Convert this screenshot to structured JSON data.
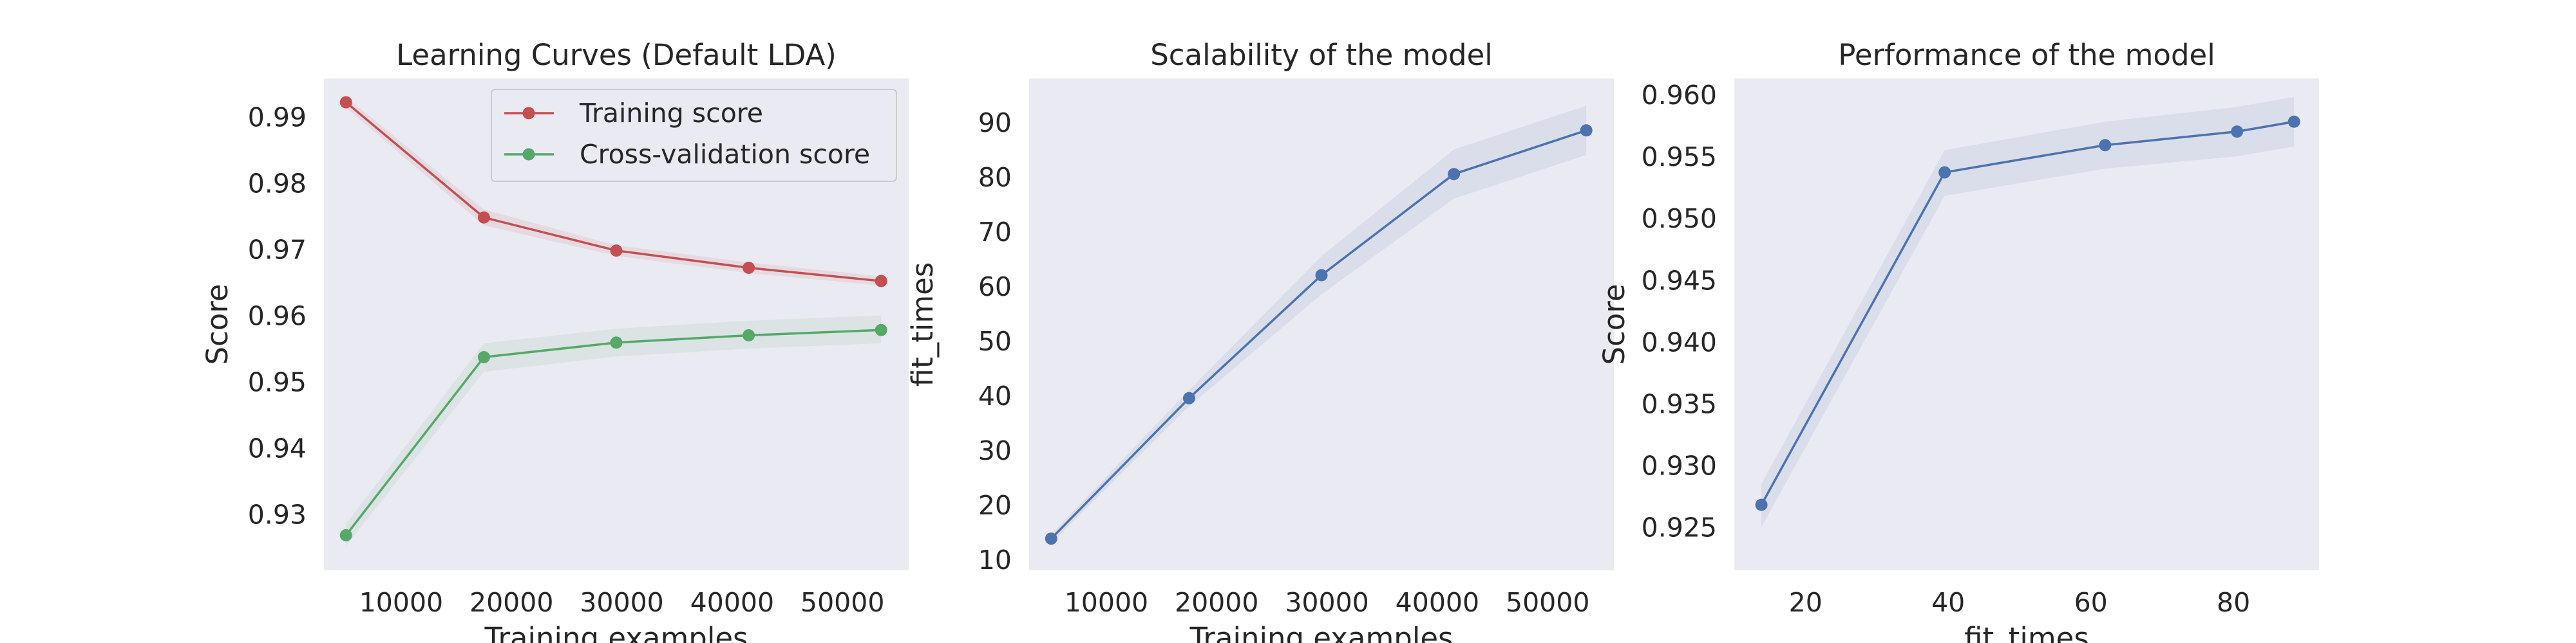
{
  "chart_data": [
    {
      "type": "line",
      "title": "Learning Curves (Default LDA)",
      "xlabel": "Training examples",
      "ylabel": "Score",
      "xlim": [
        3000,
        56000
      ],
      "ylim": [
        0.9215,
        0.9958
      ],
      "xticks": [
        10000,
        20000,
        30000,
        40000,
        50000
      ],
      "yticks": [
        0.93,
        0.94,
        0.95,
        0.96,
        0.97,
        0.98,
        0.99
      ],
      "ytick_decimals": 2,
      "grid": false,
      "legend": "top-right",
      "x": [
        5000,
        17500,
        29500,
        41500,
        53500
      ],
      "series": [
        {
          "name": "Training score",
          "color": "#c44e52",
          "values": [
            0.9922,
            0.9748,
            0.9698,
            0.9672,
            0.9652
          ],
          "lower": [
            0.9914,
            0.9736,
            0.969,
            0.9664,
            0.9645
          ],
          "upper": [
            0.993,
            0.976,
            0.9706,
            0.968,
            0.9659
          ]
        },
        {
          "name": "Cross-validation score",
          "color": "#55a868",
          "values": [
            0.9268,
            0.9537,
            0.9559,
            0.957,
            0.9578
          ],
          "lower": [
            0.9252,
            0.9515,
            0.9538,
            0.955,
            0.9558
          ],
          "upper": [
            0.9285,
            0.9558,
            0.958,
            0.9592,
            0.96
          ]
        }
      ]
    },
    {
      "type": "line",
      "title": "Scalability of the model",
      "xlabel": "Training examples",
      "ylabel": "fit_times",
      "xlim": [
        3000,
        56000
      ],
      "ylim": [
        8,
        98
      ],
      "xticks": [
        10000,
        20000,
        30000,
        40000,
        50000
      ],
      "yticks": [
        10,
        20,
        30,
        40,
        50,
        60,
        70,
        80,
        90
      ],
      "ytick_decimals": 0,
      "grid": false,
      "legend": "none",
      "x": [
        5000,
        17500,
        29500,
        41500,
        53500
      ],
      "series": [
        {
          "color": "#4c72b0",
          "values": [
            13.8,
            39.5,
            62.0,
            80.5,
            88.5
          ],
          "lower": [
            13.0,
            38.0,
            58.5,
            76.0,
            84.0
          ],
          "upper": [
            14.6,
            41.0,
            65.5,
            85.0,
            93.0
          ]
        }
      ]
    },
    {
      "type": "line",
      "title": "Performance of the model",
      "xlabel": "fit_times",
      "ylabel": "Score",
      "xlim": [
        10,
        92
      ],
      "ylim": [
        0.9215,
        0.9613
      ],
      "xticks": [
        20,
        40,
        60,
        80
      ],
      "yticks": [
        0.925,
        0.93,
        0.935,
        0.94,
        0.945,
        0.95,
        0.955,
        0.96
      ],
      "ytick_decimals": 3,
      "grid": false,
      "legend": "none",
      "x": [
        13.8,
        39.5,
        62.0,
        80.5,
        88.5
      ],
      "series": [
        {
          "color": "#4c72b0",
          "values": [
            0.9268,
            0.9537,
            0.9559,
            0.957,
            0.9578
          ],
          "lower": [
            0.925,
            0.9518,
            0.954,
            0.955,
            0.9558
          ],
          "upper": [
            0.9285,
            0.9555,
            0.9578,
            0.959,
            0.9598
          ]
        }
      ]
    }
  ]
}
